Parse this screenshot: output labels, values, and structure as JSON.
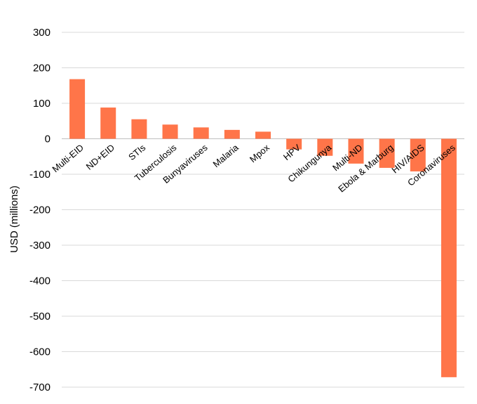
{
  "chart_data": {
    "type": "bar",
    "categories": [
      "Multi-EID",
      "ND+EID",
      "STIs",
      "Tuberculosis",
      "Bunyaviruses",
      "Malaria",
      "Mpox",
      "HPV",
      "Chikungunya",
      "Multi-ND",
      "Ebola & Marburg",
      "HIV/AIDS",
      "Coronaviruses"
    ],
    "values": [
      168,
      88,
      55,
      40,
      32,
      25,
      20,
      -30,
      -48,
      -70,
      -82,
      -92,
      -672
    ],
    "title": "",
    "xlabel": "",
    "ylabel": "USD (millions)",
    "ylim": [
      -700,
      300
    ],
    "yticks": [
      300,
      200,
      100,
      0,
      -100,
      -200,
      -300,
      -400,
      -500,
      -600,
      -700
    ],
    "bar_color": "#ff7549",
    "grid": true,
    "legend": "none"
  }
}
